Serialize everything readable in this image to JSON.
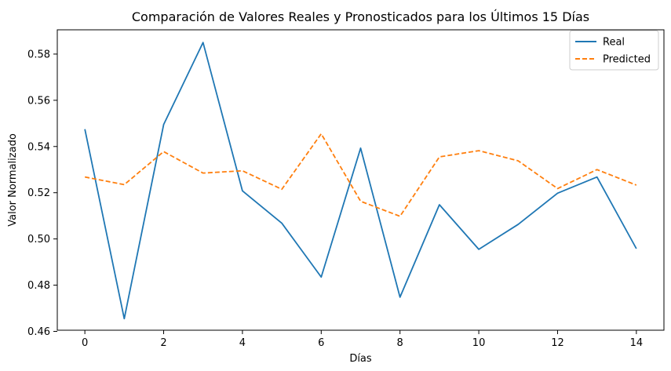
{
  "chart_data": {
    "type": "line",
    "title": "Comparación de Valores Reales y Pronosticados para los Últimos 15 Días",
    "xlabel": "Días",
    "ylabel": "Valor Normalizado",
    "xlim": [
      -0.7,
      14.7
    ],
    "ylim": [
      0.4605,
      0.5905
    ],
    "x_ticks": [
      0,
      2,
      4,
      6,
      8,
      10,
      12,
      14
    ],
    "y_ticks": [
      0.46,
      0.48,
      0.5,
      0.52,
      0.54,
      0.56,
      0.58
    ],
    "y_tick_labels": [
      "0.46",
      "0.48",
      "0.50",
      "0.52",
      "0.54",
      "0.56",
      "0.58"
    ],
    "x": [
      0,
      1,
      2,
      3,
      4,
      5,
      6,
      7,
      8,
      9,
      10,
      11,
      12,
      13,
      14
    ],
    "grid": false,
    "legend_position": "top-right",
    "series": [
      {
        "name": "Real",
        "color": "#1f77b4",
        "style": "solid",
        "values": [
          0.5475,
          0.4655,
          0.5495,
          0.585,
          0.5208,
          0.5068,
          0.4835,
          0.5393,
          0.4748,
          0.5148,
          0.4955,
          0.5063,
          0.5198,
          0.5268,
          0.4958
        ]
      },
      {
        "name": "Predicted",
        "color": "#ff7f0e",
        "style": "dashed",
        "values": [
          0.5268,
          0.5235,
          0.5378,
          0.5285,
          0.5295,
          0.5215,
          0.5455,
          0.5163,
          0.5098,
          0.5355,
          0.5382,
          0.5338,
          0.5218,
          0.53,
          0.5233
        ]
      }
    ]
  }
}
